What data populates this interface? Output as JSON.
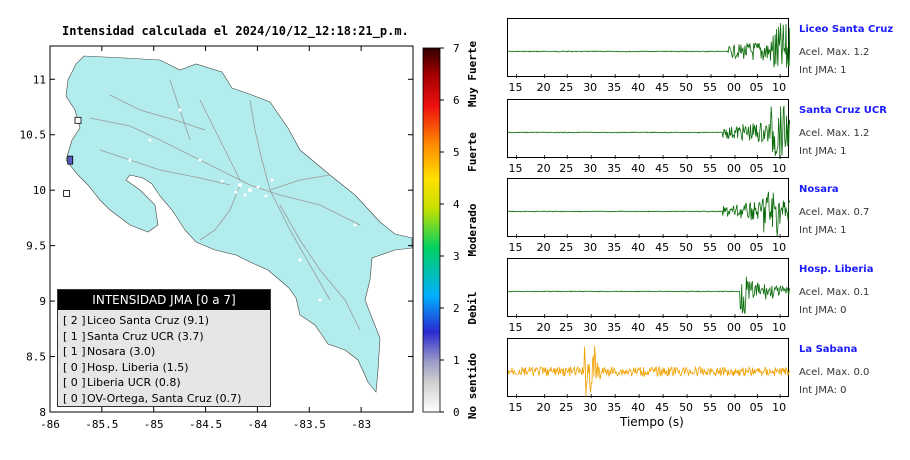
{
  "map": {
    "title": "Intensidad calculada el 2024/10/12_12:18:21_p.m.",
    "x_ticks": [
      "-86",
      "-85.5",
      "-85",
      "-84.5",
      "-84",
      "-83.5",
      "-83"
    ],
    "y_ticks": [
      "11",
      "10.5",
      "10",
      "9.5",
      "9",
      "8.5",
      "8"
    ],
    "xlim": [
      -86,
      -82.5
    ],
    "ylim": [
      8,
      11.3
    ],
    "land_color": "#b3ecec",
    "stations": [
      {
        "lon": -85.73,
        "lat": 10.63
      },
      {
        "lon": -85.8,
        "lat": 10.28
      },
      {
        "lon": -85.84,
        "lat": 9.97
      }
    ]
  },
  "legend": {
    "title": "INTENSIDAD JMA [0 a 7]",
    "items": [
      {
        "level": "[ 2 ]",
        "text": "Liceo Santa Cruz (9.1)"
      },
      {
        "level": "[ 1 ]",
        "text": "Santa Cruz UCR (3.7)"
      },
      {
        "level": "[ 1 ]",
        "text": "Nosara (3.0)"
      },
      {
        "level": "[ 0 ]",
        "text": "Hosp. Liberia (1.5)"
      },
      {
        "level": "[ 0 ]",
        "text": "Liberia UCR (0.8)"
      },
      {
        "level": "[ 0 ]",
        "text": "OV-Ortega, Santa Cruz (0.7)"
      }
    ]
  },
  "colorbar": {
    "ticks": [
      "0",
      "1",
      "2",
      "3",
      "4",
      "5",
      "6",
      "7"
    ],
    "labels": [
      "No sentido",
      "Debil",
      "Moderado",
      "Fuerte",
      "Muy Fuerte"
    ],
    "range": [
      0,
      7
    ]
  },
  "chart_data": {
    "type": "line",
    "x_tick_labels": [
      "15",
      "20",
      "25",
      "30",
      "35",
      "40",
      "45",
      "50",
      "55",
      "00",
      "05",
      "10"
    ],
    "xlabel": "Tiempo (s)",
    "series": [
      {
        "name": "Liceo Santa Cruz",
        "accel_label": "Acel. Max. 1.2",
        "int_label": "Int JMA: 1",
        "color": "#0a6b0a",
        "onset": 0.78,
        "peak_pos": 0.97,
        "amp": 1.0
      },
      {
        "name": "Santa Cruz UCR",
        "accel_label": "Acel. Max. 1.2",
        "int_label": "Int JMA: 1",
        "color": "#0a6b0a",
        "onset": 0.76,
        "peak_pos": 0.96,
        "amp": 0.95
      },
      {
        "name": "Nosara",
        "accel_label": "Acel. Max. 0.7",
        "int_label": "Int JMA: 1",
        "color": "#0a6b0a",
        "onset": 0.76,
        "peak_pos": 0.93,
        "amp": 0.9
      },
      {
        "name": "Hosp. Liberia",
        "accel_label": "Acel. Max. 0.1",
        "int_label": "Int JMA: 0",
        "color": "#0a6b0a",
        "onset": 0.82,
        "peak_pos": 0.83,
        "amp": 0.9
      },
      {
        "name": "La Sabana",
        "accel_label": "Acel. Max. 0.0",
        "int_label": "Int JMA: 0",
        "color": "#f0a000",
        "onset": 0.0,
        "peak_pos": 0.29,
        "amp": 0.9
      }
    ]
  }
}
